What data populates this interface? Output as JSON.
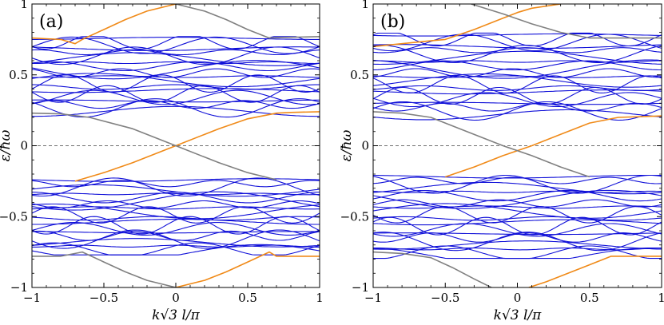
{
  "chart_data": [
    {
      "type": "line",
      "panel_label": "(a)",
      "xlabel": "k√3 l/π",
      "ylabel": "ε/ħω",
      "xlim": [
        -1,
        1
      ],
      "ylim": [
        -1,
        1
      ],
      "xticks": [
        "−1",
        "−0.5",
        "0",
        "0.5",
        "1"
      ],
      "yticks": [
        "−1",
        "−0.5",
        "0",
        "0.5",
        "1"
      ],
      "zero_line": {
        "y": 0,
        "style": "dashed"
      },
      "colors": {
        "bulk": "#1010d8",
        "edge_orange": "#f08a18",
        "edge_gray": "#808080",
        "zero": "#707070"
      },
      "bulk_bands": {
        "upper_center": 0.5,
        "lower_center": -0.5,
        "count_per_group": 22,
        "spread_min": 0.24,
        "spread_max": 0.78,
        "note": "dense blue Floquet bulk bands between |ε|≈0.24 and |ε|≈0.78"
      },
      "series": [
        {
          "name": "edge-orange-1",
          "color": "orange",
          "x": [
            -1.0,
            -0.9,
            -0.8,
            -0.7,
            -0.65,
            -0.5,
            -0.35,
            -0.2,
            0.0
          ],
          "y": [
            0.76,
            0.755,
            0.75,
            0.72,
            0.75,
            0.82,
            0.89,
            0.95,
            1.0
          ]
        },
        {
          "name": "edge-orange-2",
          "color": "orange",
          "x": [
            -0.7,
            -0.5,
            -0.3,
            0.0,
            0.3,
            0.5,
            0.7,
            0.8,
            1.0
          ],
          "y": [
            -0.25,
            -0.19,
            -0.12,
            0.0,
            0.12,
            0.19,
            0.23,
            0.235,
            0.24
          ]
        },
        {
          "name": "edge-orange-3",
          "color": "orange",
          "x": [
            0.0,
            0.2,
            0.35,
            0.5,
            0.65,
            0.7,
            0.8,
            1.0
          ],
          "y": [
            -1.0,
            -0.95,
            -0.89,
            -0.82,
            -0.75,
            -0.78,
            -0.78,
            -0.78
          ]
        },
        {
          "name": "edge-gray-1",
          "color": "gray",
          "x": [
            0.0,
            0.2,
            0.35,
            0.5,
            0.65,
            0.8,
            1.0
          ],
          "y": [
            1.0,
            0.95,
            0.89,
            0.82,
            0.76,
            0.765,
            0.77
          ]
        },
        {
          "name": "edge-gray-2",
          "color": "gray",
          "x": [
            -1.0,
            -0.8,
            -0.6,
            -0.3,
            0.0,
            0.3,
            0.5,
            0.7
          ],
          "y": [
            0.23,
            0.225,
            0.2,
            0.12,
            0.0,
            -0.12,
            -0.19,
            -0.24
          ]
        },
        {
          "name": "edge-gray-3",
          "color": "gray",
          "x": [
            -1.0,
            -0.8,
            -0.65,
            -0.5,
            -0.35,
            -0.2,
            0.0
          ],
          "y": [
            -0.78,
            -0.78,
            -0.75,
            -0.82,
            -0.89,
            -0.95,
            -1.0
          ]
        }
      ]
    },
    {
      "type": "line",
      "panel_label": "(b)",
      "xlabel": "k√3 l/π",
      "ylabel": "ε/ħω",
      "xlim": [
        -1,
        1
      ],
      "ylim": [
        -1,
        1
      ],
      "xticks": [
        "−1",
        "−0.5",
        "0",
        "0.5",
        "1"
      ],
      "yticks": [
        "−1",
        "−0.5",
        "0",
        "0.5",
        "1"
      ],
      "zero_line": {
        "y": 0,
        "style": "dashed"
      },
      "colors": {
        "bulk": "#1010d8",
        "edge_orange": "#f08a18",
        "edge_gray": "#808080",
        "zero": "#707070"
      },
      "bulk_bands": {
        "upper_center": 0.5,
        "lower_center": -0.5,
        "count_per_group": 22,
        "spread_min": 0.21,
        "spread_max": 0.8,
        "note": "dense blue Floquet bulk bands, asymmetric in k, between |ε|≈0.21 and |ε|≈0.80"
      },
      "series": [
        {
          "name": "edge-orange-1",
          "color": "orange",
          "x": [
            -1.0,
            -0.8,
            -0.6,
            -0.5,
            -0.3,
            -0.1,
            -0.0,
            0.1,
            0.3
          ],
          "y": [
            0.7,
            0.72,
            0.74,
            0.75,
            0.82,
            0.9,
            0.94,
            0.97,
            1.0
          ]
        },
        {
          "name": "edge-orange-2",
          "color": "orange",
          "x": [
            -0.5,
            -0.3,
            -0.1,
            0.1,
            0.3,
            0.5,
            0.7,
            1.0
          ],
          "y": [
            -0.22,
            -0.15,
            -0.07,
            0.0,
            0.08,
            0.16,
            0.2,
            0.21
          ]
        },
        {
          "name": "edge-orange-3",
          "color": "orange",
          "x": [
            0.08,
            0.2,
            0.35,
            0.5,
            0.65,
            0.8,
            1.0
          ],
          "y": [
            -1.0,
            -0.96,
            -0.9,
            -0.84,
            -0.78,
            -0.78,
            -0.78
          ]
        },
        {
          "name": "edge-gray-1",
          "color": "gray",
          "x": [
            -0.32,
            -0.1,
            0.1,
            0.3,
            0.5,
            0.7,
            1.0
          ],
          "y": [
            1.0,
            0.93,
            0.86,
            0.8,
            0.76,
            0.76,
            0.76
          ]
        },
        {
          "name": "edge-gray-2",
          "color": "gray",
          "x": [
            -1.0,
            -0.8,
            -0.6,
            -0.35,
            -0.1,
            0.1,
            0.3,
            0.5
          ],
          "y": [
            0.24,
            0.23,
            0.2,
            0.1,
            0.0,
            -0.07,
            -0.15,
            -0.22
          ]
        },
        {
          "name": "edge-gray-3",
          "color": "gray",
          "x": [
            -1.0,
            -0.8,
            -0.6,
            -0.45,
            -0.3,
            -0.18
          ],
          "y": [
            -0.75,
            -0.76,
            -0.79,
            -0.86,
            -0.94,
            -1.0
          ]
        }
      ]
    }
  ]
}
